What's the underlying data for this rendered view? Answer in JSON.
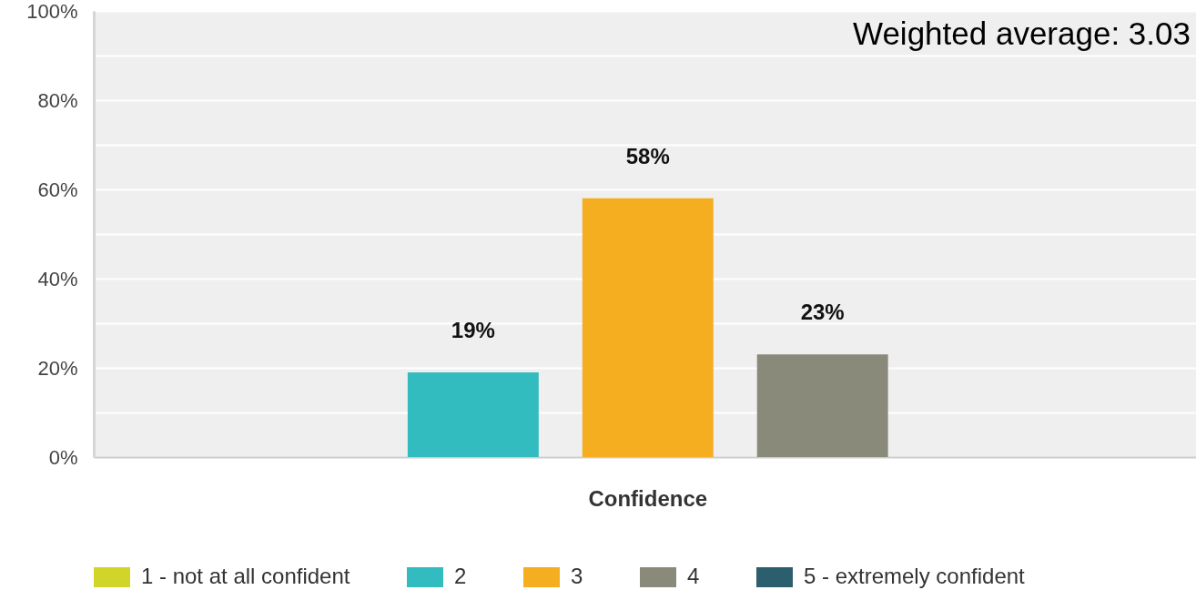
{
  "chart_data": {
    "type": "bar",
    "annotations": [
      "Weighted average: 3.03"
    ],
    "categories": [
      "Confidence"
    ],
    "series": [
      {
        "name": "1 - not at all confident",
        "color": "#d1d52a",
        "values": [
          0
        ],
        "value_labels": [
          null
        ]
      },
      {
        "name": "2",
        "color": "#33bcbf",
        "values": [
          19
        ],
        "value_labels": [
          "19%"
        ]
      },
      {
        "name": "3",
        "color": "#f5ae20",
        "values": [
          58
        ],
        "value_labels": [
          "58%"
        ]
      },
      {
        "name": "4",
        "color": "#8a8a7a",
        "values": [
          23
        ],
        "value_labels": [
          "23%"
        ]
      },
      {
        "name": "5 - extremely confident",
        "color": "#2c5f6d",
        "values": [
          0
        ],
        "value_labels": [
          null
        ]
      }
    ],
    "ylim": [
      0,
      100
    ],
    "yticks": [
      {
        "value": 0,
        "label": "0%"
      },
      {
        "value": 10,
        "label": null
      },
      {
        "value": 20,
        "label": "20%"
      },
      {
        "value": 30,
        "label": null
      },
      {
        "value": 40,
        "label": "40%"
      },
      {
        "value": 50,
        "label": null
      },
      {
        "value": 60,
        "label": "60%"
      },
      {
        "value": 70,
        "label": null
      },
      {
        "value": 80,
        "label": "80%"
      },
      {
        "value": 90,
        "label": null
      },
      {
        "value": 100,
        "label": "100%"
      }
    ],
    "grid": "y",
    "legend": "bottom"
  }
}
